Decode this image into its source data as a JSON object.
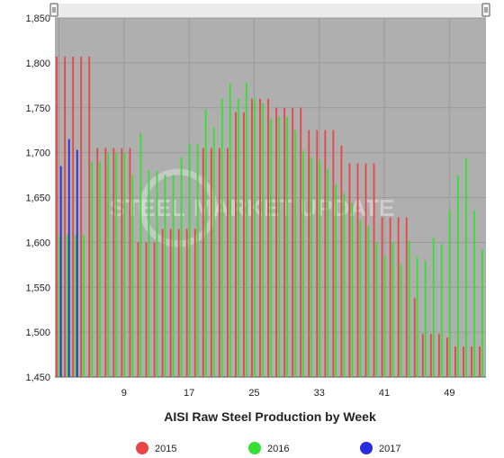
{
  "chart_data": {
    "type": "bar",
    "xlabel": "AISI Raw Steel Production by Week",
    "ylabel": "",
    "ylim": [
      1450,
      1850
    ],
    "xlim": [
      0.5,
      53.5
    ],
    "yticks": [
      "1,450",
      "1,500",
      "1,550",
      "1,600",
      "1,650",
      "1,700",
      "1,750",
      "1,800",
      "1,850"
    ],
    "xticks": [
      9,
      17,
      25,
      33,
      41,
      49
    ],
    "grid": true,
    "legend_position": "bottom",
    "series": [
      {
        "name": "2015",
        "color": "#e84545",
        "values": [
          1807,
          1807,
          1807,
          1807,
          1807,
          1705,
          1705,
          1705,
          1705,
          1705,
          1600,
          1600,
          1600,
          1615,
          1615,
          1615,
          1615,
          1615,
          1705,
          1705,
          1705,
          1705,
          1745,
          1745,
          1760,
          1760,
          1760,
          1750,
          1750,
          1750,
          1750,
          1725,
          1725,
          1725,
          1725,
          1708,
          1688,
          1688,
          1688,
          1688,
          1628,
          1628,
          1628,
          1628,
          1538,
          1498,
          1498,
          1498,
          1494,
          1484,
          1484,
          1484,
          1484
        ]
      },
      {
        "name": "2016",
        "color": "#33e033",
        "values": [
          1608,
          1608,
          1608,
          1608,
          1690,
          1690,
          1700,
          1700,
          1700,
          1675,
          1722,
          1680,
          1680,
          1675,
          1675,
          1695,
          1710,
          1710,
          1748,
          1728,
          1760,
          1777,
          1760,
          1778,
          1760,
          1755,
          1738,
          1740,
          1740,
          1725,
          1702,
          1695,
          1692,
          1682,
          1664,
          1654,
          1644,
          1625,
          1618,
          1600,
          1584,
          1600,
          1576,
          1602,
          1584,
          1580,
          1605,
          1598,
          1636,
          1675,
          1694,
          1636,
          1592
        ]
      },
      {
        "name": "2017",
        "color": "#2a2ae0",
        "values": [
          1685,
          1715,
          1703
        ]
      }
    ]
  },
  "watermark": {
    "left": "STEEL",
    "right": "MARKET UPDATE"
  }
}
